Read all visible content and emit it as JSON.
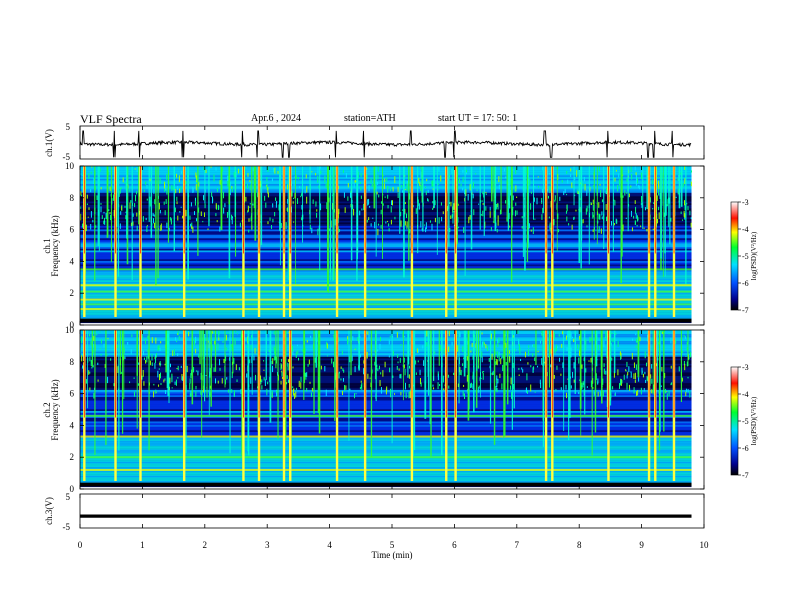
{
  "header": {
    "title": "VLF  Spectra",
    "date": "Apr.6  , 2024",
    "station": "station=ATH",
    "start": "start  UT  =    17: 50: 1"
  },
  "chart_data": [
    {
      "type": "line",
      "panel": "ch1-waveform",
      "ylabel": "ch.1(V)",
      "ylim": [
        -5,
        5
      ],
      "yticks": [
        "5",
        "-5"
      ],
      "x_range_min": [
        0,
        9.8
      ],
      "baseline_v": -0.3,
      "color": "#000000"
    },
    {
      "type": "heatmap",
      "panel": "ch1-spectrogram",
      "ylabel": "ch.1\nFrequency  (kHz)",
      "ylim_khz": [
        0,
        10
      ],
      "yticks": [
        "0",
        "2",
        "4",
        "6",
        "8",
        "10"
      ],
      "x_range_min": [
        0,
        9.8
      ],
      "colorbar": {
        "label": "log(PSD)(V²/Hz)",
        "range": [
          -7,
          -3
        ],
        "ticks": [
          "-3",
          "-4",
          "-5",
          "-6",
          "-7"
        ]
      },
      "bright_bands_khz": [
        1.0,
        1.3,
        1.6,
        2.1,
        2.5,
        3.5
      ],
      "impulsive_events_min": [
        0.05,
        0.55,
        0.95,
        1.65,
        2.6,
        2.85,
        3.25,
        3.35,
        4.1,
        4.55,
        5.3,
        5.85,
        6.0,
        7.45,
        7.55,
        8.45,
        9.1,
        9.2,
        9.5
      ]
    },
    {
      "type": "heatmap",
      "panel": "ch2-spectrogram",
      "ylabel": "ch.2\nFrequency  (kHz)",
      "ylim_khz": [
        0,
        10
      ],
      "yticks": [
        "0",
        "2",
        "4",
        "6",
        "8",
        "10"
      ],
      "x_range_min": [
        0,
        9.8
      ],
      "colorbar": {
        "label": "log(PSD)(V²/Hz)",
        "range": [
          -7,
          -3
        ],
        "ticks": [
          "-3",
          "-4",
          "-5",
          "-6",
          "-7"
        ]
      },
      "bright_bands_khz": [
        1.2,
        2.0,
        3.3,
        4.6
      ],
      "impulsive_events_min": [
        0.05,
        0.55,
        0.95,
        1.65,
        2.6,
        2.85,
        3.25,
        3.35,
        4.1,
        4.55,
        5.3,
        5.85,
        6.0,
        7.45,
        7.55,
        8.45,
        9.1,
        9.2,
        9.5
      ]
    },
    {
      "type": "line",
      "panel": "ch3-waveform",
      "ylabel": "ch.3(V)",
      "ylim": [
        -5,
        5
      ],
      "yticks": [
        "5",
        "-5"
      ],
      "x_range_min": [
        0,
        9.8
      ],
      "value_v": -1.5,
      "color": "#000000"
    }
  ],
  "xaxis": {
    "label": "Time  (min)",
    "range": [
      0,
      10
    ],
    "ticks": [
      "0",
      "1",
      "2",
      "3",
      "4",
      "5",
      "6",
      "7",
      "8",
      "9",
      "10"
    ]
  }
}
